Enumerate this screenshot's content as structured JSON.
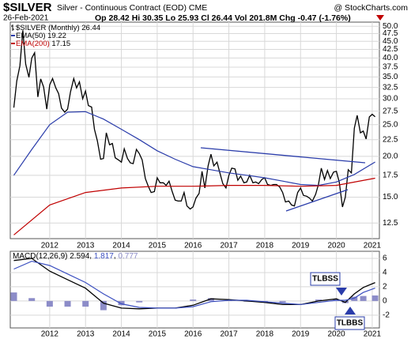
{
  "chart_data": [
    {
      "type": "line",
      "title": "$SILVER",
      "subtitle": "Silver - Continuous Contract (EOD) CME",
      "source": "@ StockCharts.com",
      "date": "26-Feb-2021",
      "quote": "Op 28.42 Hi 30.35 Lo 25.93 Cl 26.44 Vol 201.8M Chg -0.47 (-1.76%)",
      "log_scale": true,
      "grid": true,
      "xlim": [
        2010.9,
        2021.2
      ],
      "xticks": [
        2012,
        2013,
        2014,
        2015,
        2016,
        2017,
        2018,
        2019,
        2020,
        2021
      ],
      "ylim": [
        11.2,
        51.5
      ],
      "yticks": [
        12.5,
        {
          "value": 15,
          "label": "15.0"
        },
        17.5,
        {
          "value": 20,
          "label": "20.0"
        },
        22.5,
        {
          "value": 25,
          "label": "25.0"
        },
        27.5,
        {
          "value": 30,
          "label": "30.0"
        },
        32.5,
        {
          "value": 35,
          "label": "35.0"
        },
        37.5,
        {
          "value": 40,
          "label": "40.0"
        },
        42.5,
        {
          "value": 45,
          "label": "45.0"
        },
        47.5,
        {
          "value": 50,
          "label": "50.0"
        }
      ],
      "x": [
        2011.0,
        2011.08,
        2011.17,
        2011.25,
        2011.33,
        2011.42,
        2011.5,
        2011.58,
        2011.67,
        2011.75,
        2011.83,
        2011.92,
        2012.0,
        2012.08,
        2012.17,
        2012.25,
        2012.33,
        2012.42,
        2012.5,
        2012.58,
        2012.67,
        2012.75,
        2012.83,
        2012.92,
        2013.0,
        2013.08,
        2013.17,
        2013.25,
        2013.33,
        2013.42,
        2013.5,
        2013.58,
        2013.67,
        2013.75,
        2013.83,
        2013.92,
        2014.0,
        2014.08,
        2014.17,
        2014.25,
        2014.33,
        2014.42,
        2014.5,
        2014.58,
        2014.67,
        2014.75,
        2014.83,
        2014.92,
        2015.0,
        2015.08,
        2015.17,
        2015.25,
        2015.33,
        2015.42,
        2015.5,
        2015.58,
        2015.67,
        2015.75,
        2015.83,
        2015.92,
        2016.0,
        2016.08,
        2016.17,
        2016.25,
        2016.33,
        2016.42,
        2016.5,
        2016.58,
        2016.67,
        2016.75,
        2016.83,
        2016.92,
        2017.0,
        2017.08,
        2017.17,
        2017.25,
        2017.33,
        2017.42,
        2017.5,
        2017.58,
        2017.67,
        2017.75,
        2017.83,
        2017.92,
        2018.0,
        2018.08,
        2018.17,
        2018.25,
        2018.33,
        2018.42,
        2018.5,
        2018.58,
        2018.67,
        2018.75,
        2018.83,
        2018.92,
        2019.0,
        2019.08,
        2019.17,
        2019.25,
        2019.33,
        2019.42,
        2019.5,
        2019.58,
        2019.67,
        2019.75,
        2019.83,
        2019.92,
        2020.0,
        2020.08,
        2020.17,
        2020.25,
        2020.33,
        2020.42,
        2020.5,
        2020.58,
        2020.67,
        2020.75,
        2020.83,
        2020.92,
        2021.0,
        2021.08
      ],
      "series": [
        {
          "name": "$SILVER (Monthly)",
          "color": "#000000",
          "values": [
            28.2,
            34.0,
            37.9,
            48.6,
            38.3,
            34.9,
            40.0,
            41.5,
            30.4,
            34.5,
            32.6,
            27.9,
            33.1,
            34.6,
            32.4,
            31.1,
            28.1,
            27.3,
            27.9,
            31.5,
            34.6,
            32.4,
            33.8,
            30.0,
            31.7,
            28.6,
            28.3,
            24.2,
            22.3,
            19.6,
            19.7,
            23.6,
            21.7,
            21.9,
            19.8,
            19.5,
            19.2,
            21.1,
            19.7,
            19.1,
            19.0,
            21.0,
            20.4,
            19.5,
            17.1,
            16.2,
            15.5,
            15.6,
            17.2,
            16.6,
            16.6,
            16.3,
            16.8,
            15.6,
            14.7,
            14.6,
            14.6,
            15.5,
            14.1,
            13.8,
            14.0,
            14.9,
            15.4,
            18.0,
            16.0,
            18.7,
            20.3,
            18.7,
            19.2,
            17.8,
            16.5,
            16.0,
            17.5,
            18.4,
            18.3,
            16.9,
            17.4,
            16.6,
            16.7,
            17.5,
            16.6,
            16.7,
            16.5,
            17.0,
            17.2,
            16.4,
            16.3,
            16.4,
            16.4,
            16.1,
            15.5,
            14.5,
            14.6,
            14.2,
            14.1,
            15.5,
            16.0,
            15.2,
            15.1,
            14.9,
            14.6,
            15.3,
            16.4,
            18.4,
            17.0,
            18.1,
            17.1,
            17.9,
            18.0,
            16.7,
            14.0,
            15.0,
            18.2,
            17.8,
            24.4,
            26.7,
            23.6,
            23.9,
            22.6,
            26.4,
            26.9,
            26.44
          ]
        },
        {
          "name": "EMA(50)",
          "color": "#2a3caa",
          "x": [
            2011.0,
            2011.5,
            2012.0,
            2012.5,
            2013.0,
            2013.5,
            2014.0,
            2014.5,
            2015.0,
            2015.5,
            2016.0,
            2016.5,
            2017.0,
            2017.5,
            2018.0,
            2018.5,
            2019.0,
            2019.5,
            2020.0,
            2020.5,
            2021.08
          ],
          "values": [
            17.5,
            21.0,
            25.0,
            27.3,
            27.4,
            26.0,
            24.2,
            22.5,
            20.8,
            19.6,
            18.6,
            18.2,
            17.8,
            17.5,
            17.2,
            16.8,
            16.4,
            16.3,
            16.7,
            17.6,
            19.22
          ]
        },
        {
          "name": "EMA(200)",
          "color": "#c00000",
          "x": [
            2011.0,
            2012.0,
            2013.0,
            2014.0,
            2015.0,
            2016.0,
            2017.0,
            2018.0,
            2019.0,
            2020.0,
            2021.08
          ],
          "values": [
            11.5,
            14.2,
            15.5,
            16.0,
            16.2,
            16.2,
            16.3,
            16.3,
            16.2,
            16.3,
            17.15
          ]
        }
      ]
    },
    {
      "type": "line",
      "grid": true,
      "xlim": [
        2010.9,
        2021.2
      ],
      "xticks": [
        2012,
        2013,
        2014,
        2015,
        2016,
        2017,
        2018,
        2019,
        2020,
        2021
      ],
      "ylim": [
        -3.8,
        7
      ],
      "yticks": [
        -2,
        0,
        2,
        4,
        6
      ],
      "annotations": [
        "TLBSS",
        "TLBBS"
      ],
      "x": [
        2011.0,
        2011.5,
        2012.0,
        2012.5,
        2013.0,
        2013.5,
        2014.0,
        2014.5,
        2015.0,
        2015.5,
        2016.0,
        2016.5,
        2017.0,
        2017.5,
        2018.0,
        2018.5,
        2019.0,
        2019.5,
        2020.0,
        2020.25,
        2020.5,
        2020.75,
        2021.08
      ],
      "series": [
        {
          "name": "MACD(12,26,9)",
          "type": "line",
          "color": "#000000",
          "values": [
            5.7,
            6.0,
            4.2,
            3.0,
            1.8,
            -0.3,
            -1.0,
            -1.1,
            -1.0,
            -1.0,
            -0.6,
            0.3,
            0.2,
            0.0,
            -0.2,
            -0.5,
            -0.5,
            0.0,
            0.3,
            -0.2,
            1.0,
            1.9,
            2.594
          ]
        },
        {
          "type": "line",
          "color": "#3b4fc0",
          "values": [
            4.5,
            5.6,
            5.0,
            3.8,
            2.6,
            1.0,
            -0.4,
            -0.9,
            -1.0,
            -1.0,
            -0.8,
            -0.1,
            0.1,
            0.1,
            -0.1,
            -0.3,
            -0.5,
            -0.2,
            0.1,
            0.1,
            0.4,
            1.2,
            1.817
          ]
        },
        {
          "type": "bar",
          "color": "#8c8cc8",
          "values": [
            1.2,
            0.4,
            -0.8,
            -0.8,
            -0.8,
            -1.3,
            -0.6,
            -0.2,
            0,
            0,
            0.2,
            0.4,
            0.1,
            -0.1,
            -0.1,
            -0.2,
            0,
            0.2,
            0.2,
            -0.3,
            0.6,
            0.7,
            0.777
          ]
        }
      ]
    }
  ]
}
